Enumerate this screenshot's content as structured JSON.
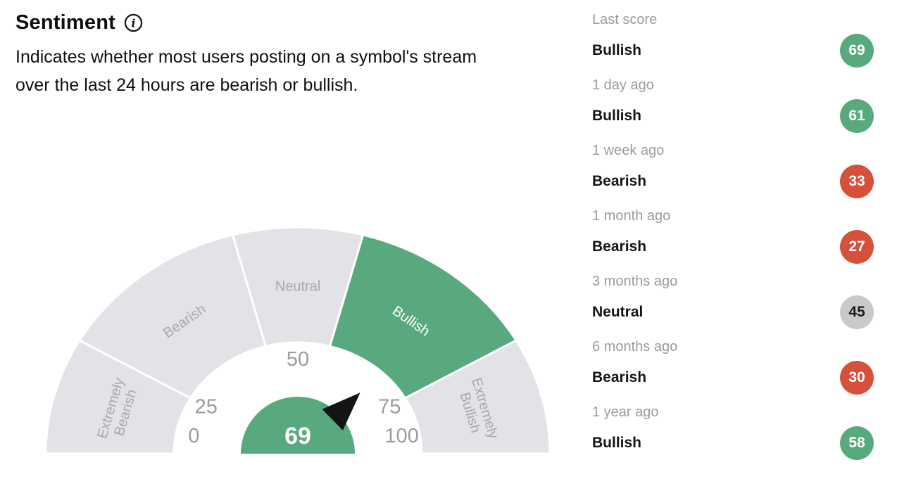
{
  "header": {
    "title": "Sentiment",
    "info_icon": "info-circle-icon",
    "description": "Indicates whether most users posting on a symbol's stream over the last 24 hours are bearish or bullish.",
    "description_lines": [
      "Indicates whether most users posting on a symbol's stream",
      "over the last 24 hours are bearish or bullish."
    ]
  },
  "chart_data": {
    "type": "gauge",
    "title": "Sentiment",
    "value": 69,
    "active_segment": "Bullish",
    "axis": {
      "min": 0,
      "max": 100,
      "ticks": [
        0,
        25,
        50,
        75,
        100
      ],
      "angle_map": [
        [
          0,
          180
        ],
        [
          25,
          150
        ],
        [
          50,
          90
        ],
        [
          75,
          30
        ],
        [
          100,
          0
        ]
      ]
    },
    "segments": [
      {
        "label": "Extremely Bearish",
        "from": 0,
        "to": 25,
        "active": false
      },
      {
        "label": "Bearish",
        "from": 25,
        "to": 43.75,
        "active": false
      },
      {
        "label": "Neutral",
        "from": 43.75,
        "to": 56.25,
        "active": false
      },
      {
        "label": "Bullish",
        "from": 56.25,
        "to": 75,
        "active": true
      },
      {
        "label": "Extremely Bullish",
        "from": 75,
        "to": 100,
        "active": false
      }
    ]
  },
  "history": {
    "rows": [
      {
        "period": "Last score",
        "sentiment": "Bullish",
        "score": 69,
        "tone": "bullish"
      },
      {
        "period": "1 day ago",
        "sentiment": "Bullish",
        "score": 61,
        "tone": "bullish"
      },
      {
        "period": "1 week ago",
        "sentiment": "Bearish",
        "score": 33,
        "tone": "bearish"
      },
      {
        "period": "1 month ago",
        "sentiment": "Bearish",
        "score": 27,
        "tone": "bearish"
      },
      {
        "period": "3 months ago",
        "sentiment": "Neutral",
        "score": 45,
        "tone": "neutral"
      },
      {
        "period": "6 months ago",
        "sentiment": "Bearish",
        "score": 30,
        "tone": "bearish"
      },
      {
        "period": "1 year ago",
        "sentiment": "Bullish",
        "score": 58,
        "tone": "bullish"
      }
    ]
  },
  "colors": {
    "bullish": "#58a97d",
    "bearish": "#d6503c",
    "neutral": "#c9c9c9",
    "segment_inactive": "#e3e2e7",
    "gauge_label": "#a9a9ad",
    "tick_label": "#9c9c9c",
    "period_label": "#9b9b9b",
    "needle": "#141414",
    "text": "#111111"
  }
}
